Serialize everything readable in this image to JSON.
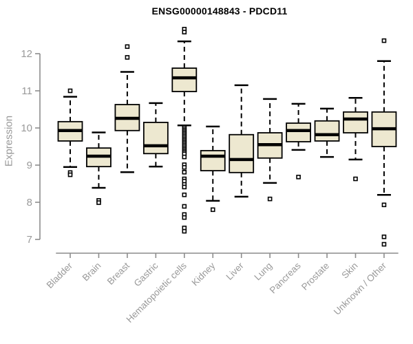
{
  "chart_data": {
    "type": "boxplot",
    "title": "ENSG00000148843 - PDCD11",
    "ylabel": "Expression",
    "ylim": [
      7,
      12
    ],
    "yticks": [
      7,
      8,
      9,
      10,
      11,
      12
    ],
    "grid": false,
    "legend": "none",
    "categories": [
      "Bladder",
      "Brain",
      "Breast",
      "Gastric",
      "Hematopoietic cells",
      "Kidney",
      "Liver",
      "Lung",
      "Pancreas",
      "Prostate",
      "Skin",
      "Unknown / Other"
    ],
    "boxes": [
      {
        "category": "Bladder",
        "whisker_low": 8.95,
        "q1": 9.65,
        "median": 9.93,
        "q3": 10.17,
        "whisker_high": 10.84,
        "outliers": [
          11.0,
          8.8,
          8.74
        ]
      },
      {
        "category": "Brain",
        "whisker_low": 8.39,
        "q1": 8.96,
        "median": 9.24,
        "q3": 9.46,
        "whisker_high": 9.88,
        "outliers": [
          8.05,
          7.99
        ]
      },
      {
        "category": "Breast",
        "whisker_low": 8.81,
        "q1": 9.93,
        "median": 10.26,
        "q3": 10.63,
        "whisker_high": 11.51,
        "outliers": [
          12.19,
          11.9
        ]
      },
      {
        "category": "Gastric",
        "whisker_low": 8.96,
        "q1": 9.31,
        "median": 9.52,
        "q3": 10.15,
        "whisker_high": 10.67,
        "outliers": []
      },
      {
        "category": "Hematopoietic cells",
        "whisker_low": 10.07,
        "q1": 10.98,
        "median": 11.35,
        "q3": 11.61,
        "whisker_high": 12.33,
        "outliers": [
          12.66,
          12.58,
          10.02,
          9.98,
          9.94,
          9.9,
          9.86,
          9.82,
          9.78,
          9.74,
          9.7,
          9.66,
          9.62,
          9.58,
          9.54,
          9.5,
          9.46,
          9.42,
          9.38,
          9.34,
          9.3,
          9.22,
          9.01,
          8.94,
          8.81,
          8.63,
          8.57,
          8.48,
          8.41,
          8.2,
          7.89,
          7.67,
          7.59,
          7.31,
          7.22
        ]
      },
      {
        "category": "Kidney",
        "whisker_low": 8.04,
        "q1": 8.85,
        "median": 9.24,
        "q3": 9.39,
        "whisker_high": 10.04,
        "outliers": [
          7.8
        ]
      },
      {
        "category": "Liver",
        "whisker_low": 8.15,
        "q1": 8.8,
        "median": 9.15,
        "q3": 9.82,
        "whisker_high": 11.15,
        "outliers": []
      },
      {
        "category": "Lung",
        "whisker_low": 8.52,
        "q1": 9.19,
        "median": 9.55,
        "q3": 9.87,
        "whisker_high": 10.78,
        "outliers": [
          8.09
        ]
      },
      {
        "category": "Pancreas",
        "whisker_low": 9.41,
        "q1": 9.63,
        "median": 9.93,
        "q3": 10.13,
        "whisker_high": 10.65,
        "outliers": [
          8.68
        ]
      },
      {
        "category": "Prostate",
        "whisker_low": 9.22,
        "q1": 9.65,
        "median": 9.82,
        "q3": 10.19,
        "whisker_high": 10.52,
        "outliers": []
      },
      {
        "category": "Skin",
        "whisker_low": 9.15,
        "q1": 9.87,
        "median": 10.24,
        "q3": 10.43,
        "whisker_high": 10.81,
        "outliers": [
          8.63
        ]
      },
      {
        "category": "Unknown / Other",
        "whisker_low": 8.2,
        "q1": 9.5,
        "median": 9.98,
        "q3": 10.43,
        "whisker_high": 11.8,
        "outliers": [
          12.35,
          7.93,
          7.07,
          6.87
        ]
      }
    ],
    "colors": {
      "box_fill": "#EDE8D0",
      "box_stroke": "#000000",
      "median": "#000000",
      "whisker": "#000000",
      "outlier_stroke": "#000000",
      "axis_line": "#8c8c8c",
      "tick_label": "#999999",
      "title": "#000000"
    }
  }
}
